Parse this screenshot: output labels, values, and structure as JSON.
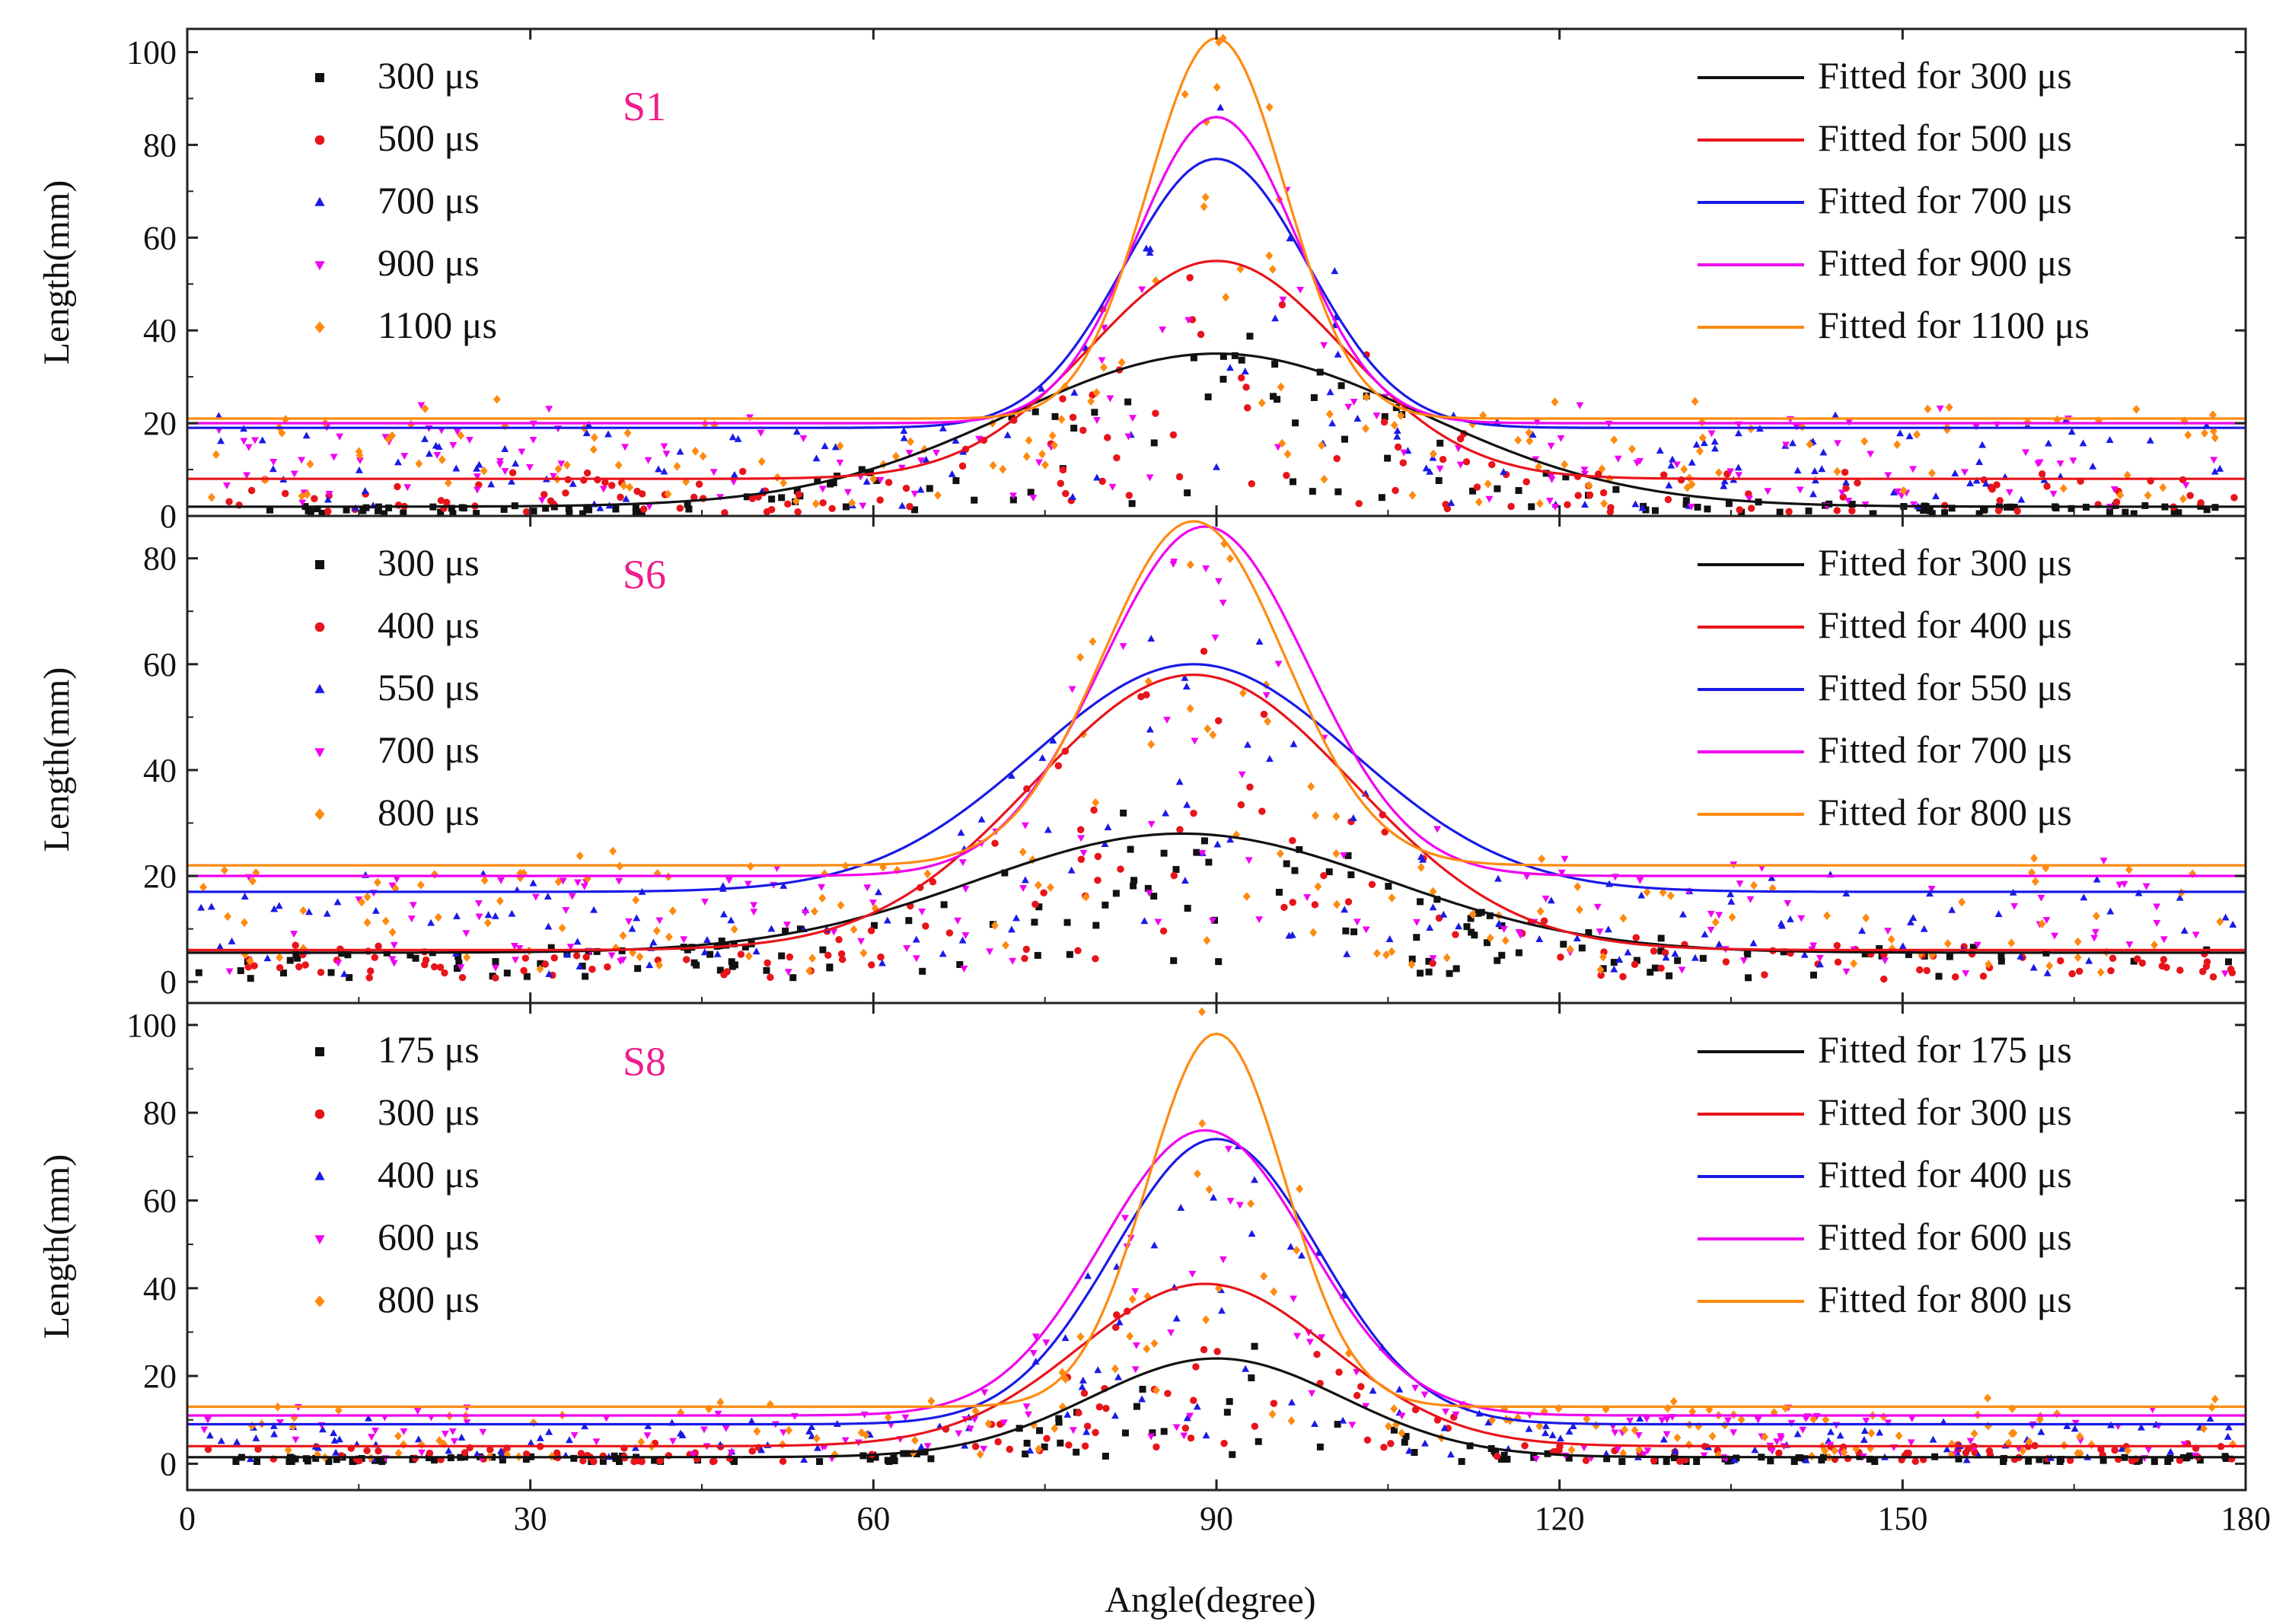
{
  "figure": {
    "x_title": "Angle(degree)",
    "x_ticks": [
      "0",
      "30",
      "60",
      "90",
      "120",
      "150",
      "180"
    ],
    "x_tick_values": [
      0,
      30,
      60,
      90,
      120,
      150,
      180
    ],
    "xlim": [
      0,
      180
    ]
  },
  "chart_data": [
    {
      "type": "scatter",
      "panel": "S1",
      "title": "",
      "xlabel": "Angle(degree)",
      "ylabel": "Length(mm)",
      "xlim": [
        0,
        180
      ],
      "ylim": [
        0,
        105
      ],
      "y_ticks": [
        0,
        20,
        40,
        60,
        80,
        100
      ],
      "y_tick_labels": [
        "0",
        "20",
        "40",
        "60",
        "80",
        "100"
      ],
      "legend_left": [
        "300 μs",
        "500 μs",
        "700 μs",
        "900 μs",
        "1100 μs"
      ],
      "legend_right": [
        "Fitted for 300 μs",
        "Fitted for 500 μs",
        "Fitted for 700 μs",
        "Fitted for 900 μs",
        "Fitted for 1100 μs"
      ],
      "series": [
        {
          "name": "300 μs",
          "color": "#111111",
          "marker": "square",
          "fit": {
            "baseline": 2,
            "peak": 35,
            "center": 90,
            "width": 18
          }
        },
        {
          "name": "500 μs",
          "color": "#e8141b",
          "marker": "circle",
          "fit": {
            "baseline": 8,
            "peak": 55,
            "center": 90,
            "width": 11
          }
        },
        {
          "name": "700 μs",
          "color": "#1a1ae6",
          "marker": "triangle-up",
          "fit": {
            "baseline": 19,
            "peak": 77,
            "center": 90,
            "width": 8
          }
        },
        {
          "name": "900 μs",
          "color": "#f000f0",
          "marker": "triangle-down",
          "fit": {
            "baseline": 20,
            "peak": 86,
            "center": 90,
            "width": 7
          }
        },
        {
          "name": "1100 μs",
          "color": "#ff8a10",
          "marker": "diamond",
          "fit": {
            "baseline": 21,
            "peak": 103,
            "center": 90,
            "width": 6
          }
        }
      ]
    },
    {
      "type": "scatter",
      "panel": "S6",
      "title": "",
      "xlabel": "Angle(degree)",
      "ylabel": "Length(mm)",
      "xlim": [
        0,
        180
      ],
      "ylim": [
        -4,
        88
      ],
      "y_ticks": [
        0,
        20,
        40,
        60,
        80
      ],
      "y_tick_labels": [
        "0",
        "20",
        "40",
        "60",
        "80"
      ],
      "legend_left": [
        "300 μs",
        "400 μs",
        "550 μs",
        "700 μs",
        "800 μs"
      ],
      "legend_right": [
        "Fitted for 300 μs",
        "Fitted for 400 μs",
        "Fitted for 550 μs",
        "Fitted for 700 μs",
        "Fitted for 800 μs"
      ],
      "series": [
        {
          "name": "300 μs",
          "color": "#111111",
          "marker": "square",
          "fit": {
            "baseline": 5.5,
            "peak": 28,
            "center": 87,
            "width": 18
          }
        },
        {
          "name": "400 μs",
          "color": "#e8141b",
          "marker": "circle",
          "fit": {
            "baseline": 6,
            "peak": 58,
            "center": 88,
            "width": 14
          }
        },
        {
          "name": "550 μs",
          "color": "#1a1ae6",
          "marker": "triangle-up",
          "fit": {
            "baseline": 17,
            "peak": 60,
            "center": 88,
            "width": 14
          }
        },
        {
          "name": "700 μs",
          "color": "#f000f0",
          "marker": "triangle-down",
          "fit": {
            "baseline": 20,
            "peak": 86,
            "center": 89,
            "width": 9
          }
        },
        {
          "name": "800 μs",
          "color": "#ff8a10",
          "marker": "diamond",
          "fit": {
            "baseline": 22,
            "peak": 87,
            "center": 88,
            "width": 8
          }
        }
      ]
    },
    {
      "type": "scatter",
      "panel": "S8",
      "title": "",
      "xlabel": "Angle(degree)",
      "ylabel": "Length(mm)",
      "xlim": [
        0,
        180
      ],
      "ylim": [
        -6,
        105
      ],
      "y_ticks": [
        0,
        20,
        40,
        60,
        80,
        100
      ],
      "y_tick_labels": [
        "0",
        "20",
        "40",
        "60",
        "80",
        "100"
      ],
      "legend_left": [
        "175 μs",
        "300 μs",
        "400 μs",
        "600 μs",
        "800 μs"
      ],
      "legend_right": [
        "Fitted for 175 μs",
        "Fitted for 300 μs",
        "Fitted for 400 μs",
        "Fitted for 600 μs",
        "Fitted for 800 μs"
      ],
      "series": [
        {
          "name": "175 μs",
          "color": "#111111",
          "marker": "square",
          "fit": {
            "baseline": 1.5,
            "peak": 24,
            "center": 90,
            "width": 11
          }
        },
        {
          "name": "300 μs",
          "color": "#e8141b",
          "marker": "circle",
          "fit": {
            "baseline": 4,
            "peak": 41,
            "center": 89,
            "width": 11
          }
        },
        {
          "name": "400 μs",
          "color": "#1a1ae6",
          "marker": "triangle-up",
          "fit": {
            "baseline": 9,
            "peak": 74,
            "center": 90,
            "width": 9
          }
        },
        {
          "name": "600 μs",
          "color": "#f000f0",
          "marker": "triangle-down",
          "fit": {
            "baseline": 11,
            "peak": 76,
            "center": 89,
            "width": 9
          }
        },
        {
          "name": "800 μs",
          "color": "#ff8a10",
          "marker": "diamond",
          "fit": {
            "baseline": 13,
            "peak": 98,
            "center": 90,
            "width": 6
          }
        }
      ]
    }
  ]
}
